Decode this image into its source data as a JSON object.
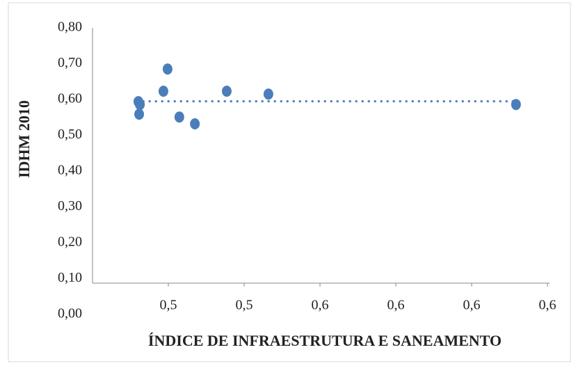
{
  "chart_data": {
    "type": "scatter",
    "xlabel": "ÍNDICE DE INFRAESTRUTURA E SANEAMENTO",
    "ylabel": "IDHM 2010",
    "series": [
      {
        "color": "#4a7ebb",
        "x": [
          0.5121,
          0.5125,
          0.5123,
          0.5198,
          0.5187,
          0.5229,
          0.527,
          0.5354,
          0.5464,
          0.6117
        ],
        "values": [
          0.594,
          0.586,
          0.559,
          0.685,
          0.623,
          0.551,
          0.532,
          0.623,
          0.615,
          0.586
        ]
      }
    ],
    "trendline": {
      "color": "#4a7ebb",
      "x": [
        0.5115,
        0.6117
      ],
      "values": [
        0.595,
        0.595
      ]
    },
    "xlim": [
      0.5,
      0.62
    ],
    "xticks": [
      {
        "value": 0.52,
        "label": "0,5"
      },
      {
        "value": 0.54,
        "label": "0,5"
      },
      {
        "value": 0.56,
        "label": "0,6"
      },
      {
        "value": 0.58,
        "label": "0,6"
      },
      {
        "value": 0.6,
        "label": "0,6"
      },
      {
        "value": 0.62,
        "label": "0,6"
      }
    ],
    "ylim": [
      0,
      0.8
    ],
    "yticks": [
      {
        "value": 0,
        "label": "0,00"
      },
      {
        "value": 0.1,
        "label": "0,10"
      },
      {
        "value": 0.2,
        "label": "0,20"
      },
      {
        "value": 0.3,
        "label": "0,30"
      },
      {
        "value": 0.4,
        "label": "0,40"
      },
      {
        "value": 0.5,
        "label": "0,50"
      },
      {
        "value": 0.6,
        "label": "0,60"
      },
      {
        "value": 0.7,
        "label": "0,70"
      },
      {
        "value": 0.8,
        "label": "0,80"
      }
    ]
  }
}
